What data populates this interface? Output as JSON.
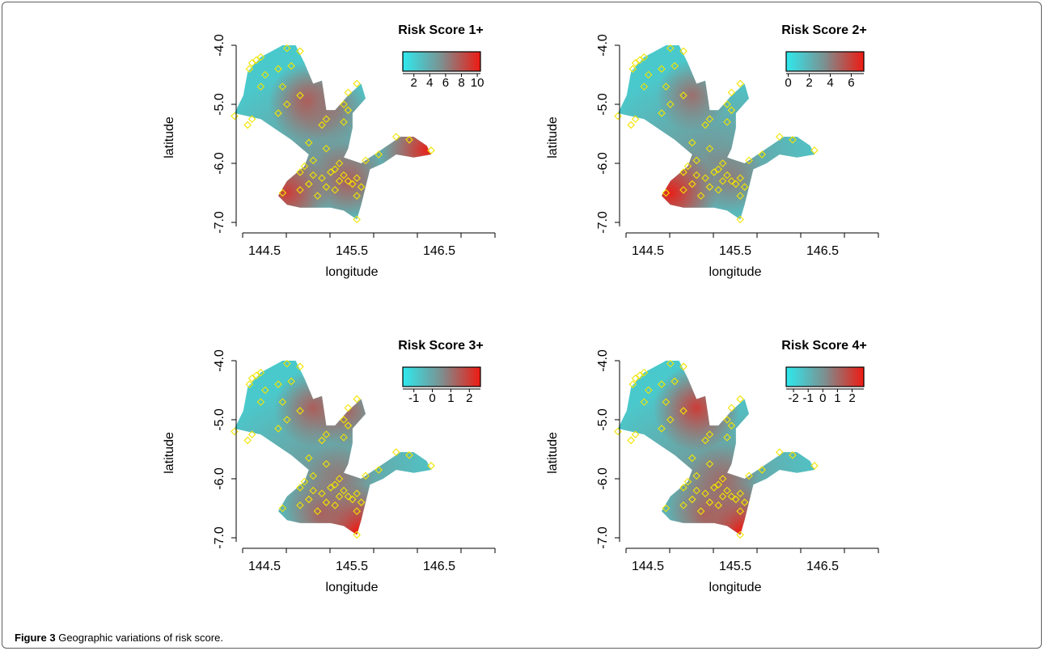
{
  "caption": {
    "label": "Figure 3",
    "text": "Geographic variations of risk score."
  },
  "colors": {
    "low": "#2ee9ee",
    "mid": "#7d8f8f",
    "high": "#ee1a12",
    "marker": "#f2e400",
    "background": "#ffffff",
    "frame": "#5f5f5f"
  },
  "axes": {
    "xlabel": "longitude",
    "ylabel": "latitude",
    "x_ticks": [
      "144.5",
      "145.5",
      "146.5"
    ],
    "y_ticks": [
      "-4.0",
      "-5.0",
      "-6.0",
      "-7.0"
    ]
  },
  "panels": [
    {
      "title": "Risk Score 1+",
      "colorbar": {
        "ticks": [
          "2",
          "4",
          "6",
          "8",
          "10"
        ],
        "min": 0.6,
        "max": 10.4
      },
      "hotspots": [
        {
          "lon": 146.65,
          "lat": -5.78,
          "value": 10
        },
        {
          "lon": 145.05,
          "lat": -6.5,
          "value": 9
        },
        {
          "lon": 145.3,
          "lat": -4.95,
          "value": 8
        },
        {
          "lon": 145.75,
          "lat": -6.3,
          "value": 7.5
        },
        {
          "lon": 145.55,
          "lat": -5.05,
          "value": 6.5
        }
      ]
    },
    {
      "title": "Risk Score 2+",
      "colorbar": {
        "ticks": [
          "0",
          "2",
          "4",
          "6"
        ],
        "min": -0.2,
        "max": 7.2
      },
      "hotspots": [
        {
          "lon": 145.05,
          "lat": -6.5,
          "value": 7
        },
        {
          "lon": 145.3,
          "lat": -4.85,
          "value": 4.5
        },
        {
          "lon": 145.75,
          "lat": -6.25,
          "value": 4
        }
      ]
    },
    {
      "title": "Risk Score 3+",
      "colorbar": {
        "ticks": [
          "-1",
          "0",
          "1",
          "2"
        ],
        "min": -1.6,
        "max": 2.6
      },
      "hotspots": [
        {
          "lon": 145.85,
          "lat": -6.9,
          "value": 2.6
        },
        {
          "lon": 145.35,
          "lat": -4.8,
          "value": 1.4
        },
        {
          "lon": 145.45,
          "lat": -6.6,
          "value": 1.3
        },
        {
          "lon": 145.75,
          "lat": -4.85,
          "value": 1.2
        },
        {
          "lon": 145.65,
          "lat": -6.0,
          "value": 0.9
        }
      ]
    },
    {
      "title": "Risk Score 4+",
      "colorbar": {
        "ticks": [
          "-2",
          "-1",
          "0",
          "1",
          "2"
        ],
        "min": -2.5,
        "max": 2.8
      },
      "hotspots": [
        {
          "lon": 145.85,
          "lat": -6.9,
          "value": 2.8
        },
        {
          "lon": 145.35,
          "lat": -4.8,
          "value": 2.0
        },
        {
          "lon": 145.45,
          "lat": -6.6,
          "value": 1.2
        },
        {
          "lon": 145.65,
          "lat": -6.05,
          "value": 1.0
        }
      ]
    }
  ],
  "region": {
    "outline": [
      [
        144.45,
        -5.15
      ],
      [
        144.55,
        -4.85
      ],
      [
        144.6,
        -4.45
      ],
      [
        144.75,
        -4.2
      ],
      [
        145.0,
        -4.0
      ],
      [
        145.15,
        -4.0
      ],
      [
        145.25,
        -4.3
      ],
      [
        145.35,
        -4.65
      ],
      [
        145.45,
        -4.6
      ],
      [
        145.5,
        -5.1
      ],
      [
        145.6,
        -5.1
      ],
      [
        145.75,
        -4.85
      ],
      [
        145.9,
        -4.65
      ],
      [
        145.95,
        -4.9
      ],
      [
        145.8,
        -5.15
      ],
      [
        145.8,
        -5.4
      ],
      [
        145.75,
        -5.75
      ],
      [
        145.7,
        -5.9
      ],
      [
        145.9,
        -6.0
      ],
      [
        146.1,
        -5.8
      ],
      [
        146.35,
        -5.55
      ],
      [
        146.5,
        -5.55
      ],
      [
        146.65,
        -5.7
      ],
      [
        146.7,
        -5.85
      ],
      [
        146.5,
        -5.9
      ],
      [
        146.3,
        -5.85
      ],
      [
        146.15,
        -6.0
      ],
      [
        146.0,
        -6.1
      ],
      [
        145.95,
        -6.4
      ],
      [
        145.9,
        -6.7
      ],
      [
        145.85,
        -6.95
      ],
      [
        145.7,
        -6.8
      ],
      [
        145.55,
        -6.75
      ],
      [
        145.4,
        -6.75
      ],
      [
        145.2,
        -6.75
      ],
      [
        145.05,
        -6.7
      ],
      [
        144.95,
        -6.55
      ],
      [
        145.05,
        -6.3
      ],
      [
        145.25,
        -6.05
      ],
      [
        145.3,
        -5.85
      ],
      [
        145.1,
        -5.6
      ],
      [
        144.95,
        -5.45
      ],
      [
        144.75,
        -5.25
      ]
    ],
    "stations": [
      [
        144.45,
        -5.2
      ],
      [
        144.65,
        -4.3
      ],
      [
        144.7,
        -4.25
      ],
      [
        144.75,
        -4.2
      ],
      [
        144.62,
        -4.4
      ],
      [
        144.8,
        -4.5
      ],
      [
        144.95,
        -4.4
      ],
      [
        145.1,
        -4.35
      ],
      [
        145.05,
        -4.05
      ],
      [
        145.2,
        -4.1
      ],
      [
        144.75,
        -4.7
      ],
      [
        145.0,
        -4.7
      ],
      [
        145.2,
        -4.85
      ],
      [
        145.05,
        -5.0
      ],
      [
        144.95,
        -5.15
      ],
      [
        144.65,
        -5.25
      ],
      [
        144.6,
        -5.35
      ],
      [
        145.85,
        -4.65
      ],
      [
        145.75,
        -4.8
      ],
      [
        145.7,
        -5.0
      ],
      [
        145.5,
        -5.25
      ],
      [
        145.45,
        -5.35
      ],
      [
        145.7,
        -5.3
      ],
      [
        145.75,
        -5.1
      ],
      [
        145.3,
        -5.65
      ],
      [
        145.5,
        -5.75
      ],
      [
        145.35,
        -5.95
      ],
      [
        145.25,
        -6.05
      ],
      [
        145.2,
        -6.15
      ],
      [
        145.35,
        -6.2
      ],
      [
        145.45,
        -6.25
      ],
      [
        145.55,
        -6.15
      ],
      [
        145.6,
        -6.1
      ],
      [
        145.65,
        -6.0
      ],
      [
        145.7,
        -6.2
      ],
      [
        145.75,
        -6.3
      ],
      [
        145.8,
        -6.35
      ],
      [
        145.65,
        -6.3
      ],
      [
        145.6,
        -6.45
      ],
      [
        145.5,
        -6.4
      ],
      [
        145.4,
        -6.55
      ],
      [
        145.3,
        -6.35
      ],
      [
        145.2,
        -6.45
      ],
      [
        145.0,
        -6.5
      ],
      [
        145.85,
        -6.25
      ],
      [
        145.9,
        -6.4
      ],
      [
        145.85,
        -6.55
      ],
      [
        145.85,
        -6.95
      ],
      [
        145.95,
        -5.95
      ],
      [
        146.1,
        -5.85
      ],
      [
        146.3,
        -5.55
      ],
      [
        146.45,
        -5.6
      ],
      [
        146.7,
        -5.78
      ]
    ]
  }
}
